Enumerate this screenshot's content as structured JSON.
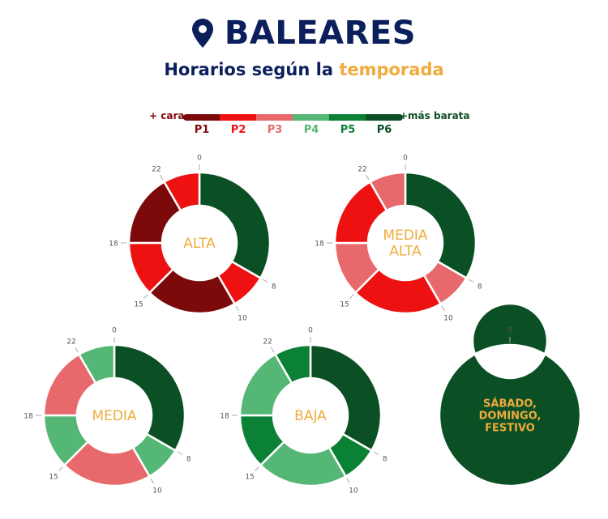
{
  "header": {
    "title": "BALEARES",
    "subtitle_prefix": "Horarios según la ",
    "subtitle_accent": "temporada",
    "icon": "location-pin-icon"
  },
  "legend": {
    "left_label": "+ cara",
    "right_label": "+más barata",
    "periods": [
      {
        "label": "P1",
        "color": "#7d0a0b"
      },
      {
        "label": "P2",
        "color": "#ee1112"
      },
      {
        "label": "P3",
        "color": "#e8696b"
      },
      {
        "label": "P4",
        "color": "#55b775"
      },
      {
        "label": "P5",
        "color": "#0b8136"
      },
      {
        "label": "P6",
        "color": "#0b4f25"
      }
    ]
  },
  "colors": {
    "title": "#0b1f5c",
    "accent": "#f0ab3c",
    "tick_label": "#555555"
  },
  "chart_data": [
    {
      "type": "donut",
      "title": "ALTA",
      "segments": [
        {
          "from": 0,
          "to": 8,
          "period": "P6"
        },
        {
          "from": 8,
          "to": 10,
          "period": "P2"
        },
        {
          "from": 10,
          "to": 15,
          "period": "P1"
        },
        {
          "from": 15,
          "to": 18,
          "period": "P2"
        },
        {
          "from": 18,
          "to": 22,
          "period": "P1"
        },
        {
          "from": 22,
          "to": 24,
          "period": "P2"
        }
      ],
      "ticks": [
        "0",
        "8",
        "10",
        "15",
        "18",
        "22"
      ]
    },
    {
      "type": "donut",
      "title": "MEDIA ALTA",
      "segments": [
        {
          "from": 0,
          "to": 8,
          "period": "P6"
        },
        {
          "from": 8,
          "to": 10,
          "period": "P3"
        },
        {
          "from": 10,
          "to": 15,
          "period": "P2"
        },
        {
          "from": 15,
          "to": 18,
          "period": "P3"
        },
        {
          "from": 18,
          "to": 22,
          "period": "P2"
        },
        {
          "from": 22,
          "to": 24,
          "period": "P3"
        }
      ],
      "ticks": [
        "0",
        "8",
        "10",
        "15",
        "18",
        "22"
      ]
    },
    {
      "type": "donut",
      "title": "MEDIA",
      "segments": [
        {
          "from": 0,
          "to": 8,
          "period": "P6"
        },
        {
          "from": 8,
          "to": 10,
          "period": "P4"
        },
        {
          "from": 10,
          "to": 15,
          "period": "P3"
        },
        {
          "from": 15,
          "to": 18,
          "period": "P4"
        },
        {
          "from": 18,
          "to": 22,
          "period": "P3"
        },
        {
          "from": 22,
          "to": 24,
          "period": "P4"
        }
      ],
      "ticks": [
        "0",
        "8",
        "10",
        "15",
        "18",
        "22"
      ]
    },
    {
      "type": "donut",
      "title": "BAJA",
      "segments": [
        {
          "from": 0,
          "to": 8,
          "period": "P6"
        },
        {
          "from": 8,
          "to": 10,
          "period": "P5"
        },
        {
          "from": 10,
          "to": 15,
          "period": "P4"
        },
        {
          "from": 15,
          "to": 18,
          "period": "P5"
        },
        {
          "from": 18,
          "to": 22,
          "period": "P4"
        },
        {
          "from": 22,
          "to": 24,
          "period": "P5"
        }
      ],
      "ticks": [
        "0",
        "8",
        "10",
        "15",
        "18",
        "22"
      ]
    },
    {
      "type": "donut",
      "title": "SÁBADO, DOMINGO, FESTIVO",
      "segments": [
        {
          "from": 0,
          "to": 24,
          "period": "P6"
        }
      ],
      "ticks": [
        "0"
      ]
    }
  ]
}
